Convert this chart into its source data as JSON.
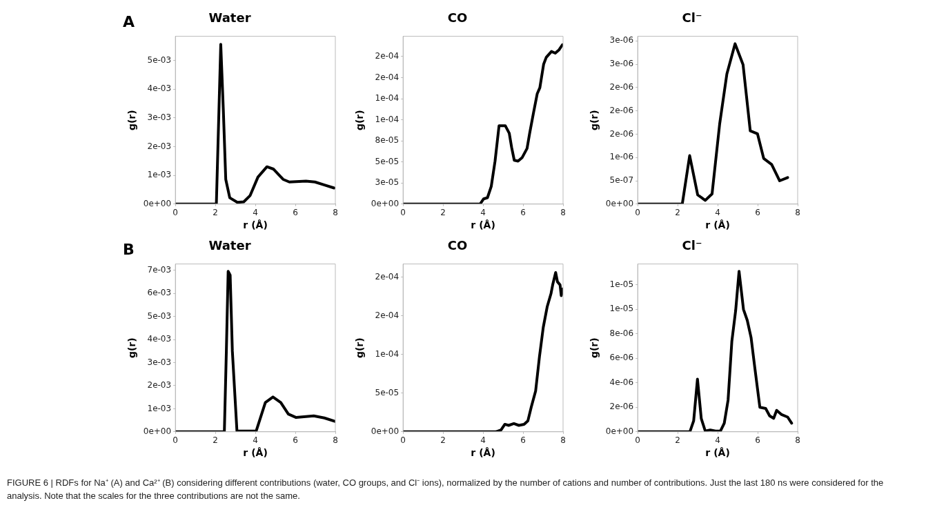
{
  "chart_data": [
    {
      "type": "line",
      "title": "Water",
      "xlabel": "r (Å)",
      "ylabel": "g(r)",
      "marker": "none",
      "grid": false,
      "annotations": [
        "A"
      ],
      "x": [
        0,
        2.05,
        2.27,
        2.4,
        2.52,
        2.72,
        3.1,
        3.42,
        3.74,
        4.13,
        4.58,
        4.9,
        5.39,
        5.7,
        6.53,
        6.98,
        7.43,
        7.94
      ],
      "series": [
        {
          "color": "#000000",
          "values": [
            0,
            0,
            0.00556,
            0.00325,
            0.00086,
            0.00022,
            6e-05,
            8e-05,
            0.0003,
            0.00094,
            0.0013,
            0.00122,
            0.00086,
            0.00077,
            0.0008,
            0.00077,
            0.00067,
            0.00056
          ]
        }
      ],
      "xlim": [
        0,
        8
      ],
      "xticks": [
        0,
        2,
        4,
        6,
        8
      ],
      "ylim": [
        0,
        0.00584
      ],
      "yticks": [
        {
          "value": 0,
          "label": "0e+00"
        },
        {
          "value": 0.001,
          "label": "1e-03"
        },
        {
          "value": 0.002,
          "label": "2e-03"
        },
        {
          "value": 0.003,
          "label": "3e-03"
        },
        {
          "value": 0.004,
          "label": "4e-03"
        },
        {
          "value": 0.005,
          "label": "5e-03"
        }
      ]
    },
    {
      "type": "line",
      "title": "CO",
      "xlabel": "r (Å)",
      "ylabel": "g(r)",
      "marker": "none",
      "grid": false,
      "x": [
        0,
        3.85,
        4.03,
        4.22,
        4.41,
        4.6,
        4.8,
        5.11,
        5.31,
        5.43,
        5.56,
        5.75,
        5.95,
        6.2,
        6.33,
        6.52,
        6.71,
        6.84,
        7.03,
        7.16,
        7.42,
        7.61,
        7.8,
        7.97
      ],
      "series": [
        {
          "color": "#000000",
          "values": [
            0,
            0,
            6.2e-06,
            7.6e-06,
            2.1e-05,
            5.1e-05,
            9.3e-05,
            9.3e-05,
            8.4e-05,
            6.7e-05,
            5.2e-05,
            5.1e-05,
            5.5e-05,
            6.6e-05,
            8.4e-05,
            0.000108,
            0.000131,
            0.000138,
            0.000166,
            0.000174,
            0.000181,
            0.000179,
            0.000183,
            0.000189
          ]
        }
      ],
      "xlim": [
        0,
        8
      ],
      "xticks": [
        0,
        2,
        4,
        6,
        8
      ],
      "ylim": [
        0,
        0.000199
      ],
      "yticks": [
        {
          "value": 0,
          "label": "0e+00"
        },
        {
          "value": 2.5e-05,
          "label": "3e-05"
        },
        {
          "value": 5e-05,
          "label": "5e-05"
        },
        {
          "value": 7.5e-05,
          "label": "8e-05"
        },
        {
          "value": 0.0001,
          "label": "1e-04"
        },
        {
          "value": 0.000125,
          "label": "1e-04"
        },
        {
          "value": 0.00015,
          "label": "2e-04"
        },
        {
          "value": 0.000175,
          "label": "2e-04"
        }
      ]
    },
    {
      "type": "line",
      "title": "Cl⁻",
      "xlabel": "r (Å)",
      "ylabel": "g(r)",
      "marker": "none",
      "grid": false,
      "x": [
        0,
        2.23,
        2.6,
        3.0,
        3.38,
        3.72,
        4.1,
        4.46,
        4.87,
        5.27,
        5.63,
        5.99,
        6.3,
        6.7,
        7.1,
        7.5
      ],
      "series": [
        {
          "color": "#000000",
          "values": [
            0,
            0,
            1.04e-06,
            2e-07,
            8e-08,
            2.2e-07,
            1.72e-06,
            2.79e-06,
            3.44e-06,
            2.99e-06,
            1.57e-06,
            1.51e-06,
            9.8e-07,
            8.5e-07,
            5e-07,
            5.7e-07
          ]
        }
      ],
      "xlim": [
        0,
        8
      ],
      "xticks": [
        0,
        2,
        4,
        6,
        8
      ],
      "ylim": [
        0,
        3.6e-06
      ],
      "yticks": [
        {
          "value": 0,
          "label": "0e+00"
        },
        {
          "value": 5e-07,
          "label": "5e-07"
        },
        {
          "value": 1e-06,
          "label": "1e-06"
        },
        {
          "value": 1.5e-06,
          "label": "2e-06"
        },
        {
          "value": 2e-06,
          "label": "2e-06"
        },
        {
          "value": 2.5e-06,
          "label": "2e-06"
        },
        {
          "value": 3e-06,
          "label": "3e-06"
        },
        {
          "value": 3.5e-06,
          "label": "3e-06"
        }
      ]
    },
    {
      "type": "line",
      "title": "Water",
      "xlabel": "r (Å)",
      "ylabel": "g(r)",
      "marker": "none",
      "grid": false,
      "annotations": [
        "B"
      ],
      "x": [
        0,
        2.45,
        2.55,
        2.64,
        2.74,
        2.85,
        3.08,
        4.04,
        4.5,
        4.88,
        5.27,
        5.65,
        6.04,
        6.92,
        7.45,
        8.0
      ],
      "series": [
        {
          "color": "#000000",
          "values": [
            0,
            0,
            0.0035,
            0.00696,
            0.0068,
            0.0035,
            3e-05,
            3e-05,
            0.00127,
            0.00151,
            0.00127,
            0.00077,
            0.00062,
            0.00069,
            0.0006,
            0.00045
          ]
        }
      ],
      "xlim": [
        0,
        8
      ],
      "xticks": [
        0,
        2,
        4,
        6,
        8
      ],
      "ylim": [
        0,
        0.00728
      ],
      "yticks": [
        {
          "value": 0,
          "label": "0e+00"
        },
        {
          "value": 0.001,
          "label": "1e-03"
        },
        {
          "value": 0.002,
          "label": "2e-03"
        },
        {
          "value": 0.003,
          "label": "3e-03"
        },
        {
          "value": 0.004,
          "label": "4e-03"
        },
        {
          "value": 0.005,
          "label": "5e-03"
        },
        {
          "value": 0.006,
          "label": "6e-03"
        },
        {
          "value": 0.007,
          "label": "7e-03"
        }
      ]
    },
    {
      "type": "line",
      "title": "CO",
      "xlabel": "r (Å)",
      "ylabel": "g(r)",
      "marker": "none",
      "grid": false,
      "x": [
        0,
        4.64,
        4.9,
        5.09,
        5.28,
        5.54,
        5.79,
        6.05,
        6.24,
        6.41,
        6.63,
        6.82,
        7.01,
        7.21,
        7.4,
        7.49,
        7.63,
        7.72,
        7.85,
        7.91,
        8.0
      ],
      "series": [
        {
          "color": "#000000",
          "values": [
            0,
            0,
            2.4e-06,
            9.7e-06,
            8.3e-06,
            1.06e-05,
            8.3e-06,
            9.7e-06,
            1.4e-05,
            3.2e-05,
            5.3e-05,
            9.7e-05,
            0.000135,
            0.000162,
            0.000179,
            0.000191,
            0.000206,
            0.000194,
            0.00019,
            0.000176,
            0.000185
          ]
        }
      ],
      "xlim": [
        0,
        8
      ],
      "xticks": [
        0,
        2,
        4,
        6,
        8
      ],
      "ylim": [
        0,
        0.000217
      ],
      "yticks": [
        {
          "value": 0,
          "label": "0e+00"
        },
        {
          "value": 5e-05,
          "label": "5e-05"
        },
        {
          "value": 0.0001,
          "label": "1e-04"
        },
        {
          "value": 0.00015,
          "label": "2e-04"
        },
        {
          "value": 0.0002,
          "label": "2e-04"
        }
      ]
    },
    {
      "type": "line",
      "title": "Cl⁻",
      "xlabel": "r (Å)",
      "ylabel": "g(r)",
      "marker": "none",
      "grid": false,
      "annotations": [
        "FIGURE 6 | RDFs for Na⁺ (A) and Ca²⁺ (B) considering different contributions (water, CO groups, and Cl⁻ ions), normalized by the number of cations and number of contributions. Just the last 180 ns were considered for the analysis. Note that the scales for the three contributions are not the same."
      ],
      "x": [
        0,
        2.61,
        2.8,
        2.99,
        3.18,
        3.38,
        3.63,
        3.89,
        4.14,
        4.33,
        4.52,
        4.71,
        4.9,
        5.07,
        5.29,
        5.48,
        5.67,
        5.86,
        6.11,
        6.4,
        6.6,
        6.8,
        6.95,
        7.2,
        7.5,
        7.7
      ],
      "series": [
        {
          "color": "#000000",
          "values": [
            0,
            0,
            9e-07,
            4.3e-06,
            1.08e-06,
            6e-08,
            1.5e-07,
            6e-08,
            6e-08,
            7e-07,
            2.58e-06,
            7.4e-06,
            9.9e-06,
            1.31e-05,
            1e-05,
            9.1e-06,
            7.7e-06,
            5.2e-06,
            2e-06,
            1.9e-06,
            1.3e-06,
            1.1e-06,
            1.75e-06,
            1.4e-06,
            1.2e-06,
            7e-07
          ]
        }
      ],
      "xlim": [
        0,
        8
      ],
      "xticks": [
        0,
        2,
        4,
        6,
        8
      ],
      "ylim": [
        0,
        1.37e-05
      ],
      "yticks": [
        {
          "value": 0,
          "label": "0e+00"
        },
        {
          "value": 2e-06,
          "label": "2e-06"
        },
        {
          "value": 4e-06,
          "label": "4e-06"
        },
        {
          "value": 6e-06,
          "label": "6e-06"
        },
        {
          "value": 8e-06,
          "label": "8e-06"
        },
        {
          "value": 1e-05,
          "label": "1e-05"
        },
        {
          "value": 1.2e-05,
          "label": "1e-05"
        }
      ]
    }
  ]
}
